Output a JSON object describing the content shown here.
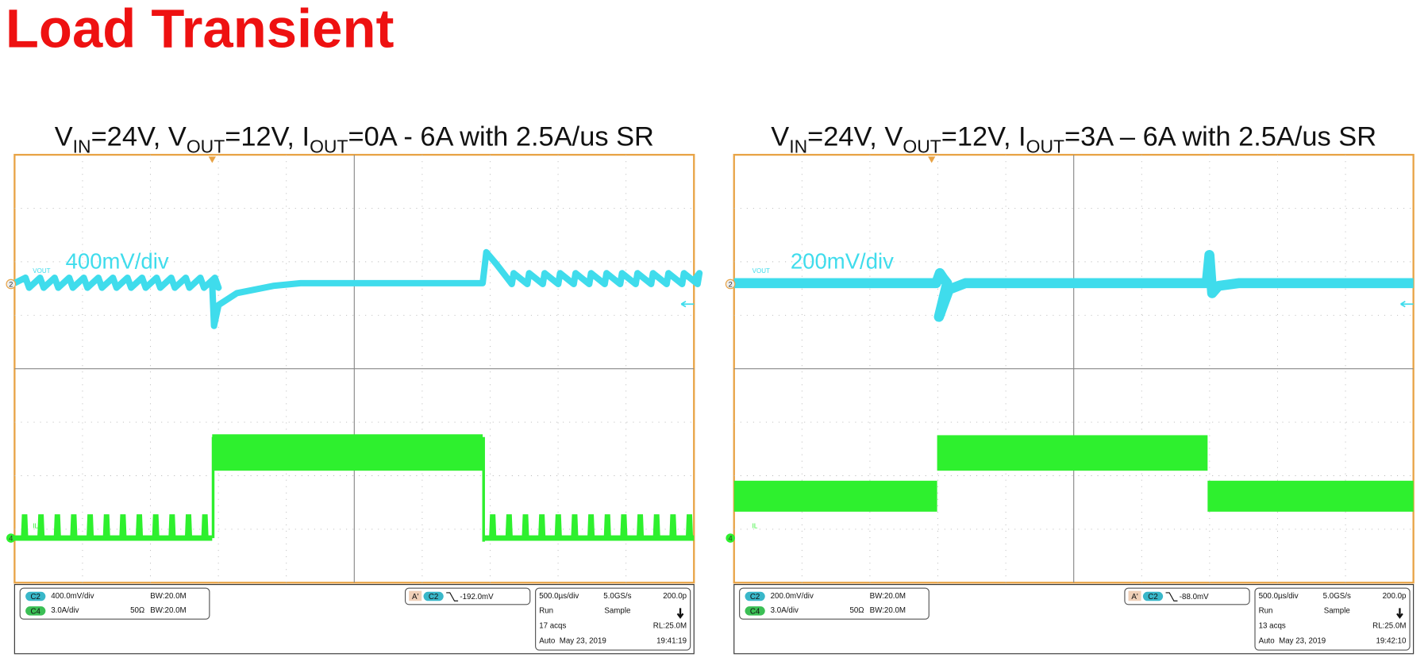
{
  "title": "Load Transient",
  "panels": [
    {
      "caption": [
        {
          "text": "V"
        },
        {
          "text": "IN",
          "sub": true
        },
        {
          "text": "=24V, V"
        },
        {
          "text": "OUT",
          "sub": true
        },
        {
          "text": "=12V, I"
        },
        {
          "text": "OUT",
          "sub": true
        },
        {
          "text": "=0A - 6A with 2.5A/us SR"
        }
      ],
      "scale_label": "400mV/div",
      "ch2_name": "VOUT",
      "ch4_name": "IL",
      "ch2_marker": "2",
      "ch4_marker": "4",
      "channels": [
        {
          "badge": "C2",
          "scale": "400.0mV/div",
          "coupling": "",
          "bandwidth": "BW:20.0M"
        },
        {
          "badge": "C4",
          "scale": "3.0A/div",
          "coupling": "50Ω",
          "bandwidth": "BW:20.0M"
        }
      ],
      "trigger": {
        "badge_a": "A'",
        "badge_c": "C2",
        "level": "-192.0mV"
      },
      "timebase": [
        [
          "500.0µs/div",
          "5.0GS/s",
          "200.0p"
        ],
        [
          "Run",
          "Sample",
          ""
        ],
        [
          "17 acqs",
          "",
          "RL:25.0M"
        ],
        [
          "Auto",
          "May 23, 2019",
          "19:41:19"
        ]
      ]
    },
    {
      "caption": [
        {
          "text": "V"
        },
        {
          "text": "IN",
          "sub": true
        },
        {
          "text": "=24V, V"
        },
        {
          "text": "OUT",
          "sub": true
        },
        {
          "text": "=12V, I"
        },
        {
          "text": "OUT",
          "sub": true
        },
        {
          "text": "=3A – 6A with 2.5A/us SR"
        }
      ],
      "scale_label": "200mV/div",
      "ch2_name": "VOUT",
      "ch4_name": "IL",
      "ch2_marker": "2",
      "ch4_marker": "4",
      "channels": [
        {
          "badge": "C2",
          "scale": "200.0mV/div",
          "coupling": "",
          "bandwidth": "BW:20.0M"
        },
        {
          "badge": "C4",
          "scale": "3.0A/div",
          "coupling": "50Ω",
          "bandwidth": "BW:20.0M"
        }
      ],
      "trigger": {
        "badge_a": "A'",
        "badge_c": "C2",
        "level": "-88.0mV"
      },
      "timebase": [
        [
          "500.0µs/div",
          "5.0GS/s",
          "200.0p"
        ],
        [
          "Run",
          "Sample",
          ""
        ],
        [
          "13 acqs",
          "",
          "RL:25.0M"
        ],
        [
          "Auto",
          "May 23, 2019",
          "19:42:10"
        ]
      ]
    }
  ]
}
